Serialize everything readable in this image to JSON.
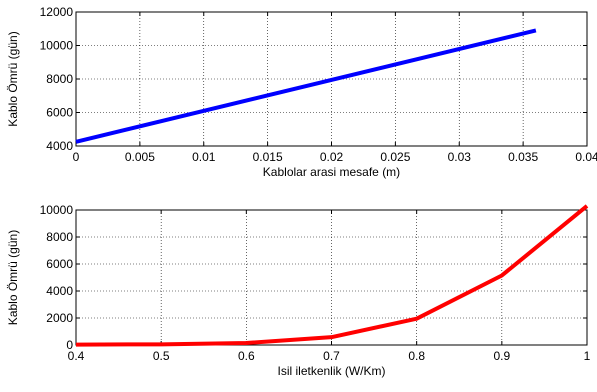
{
  "chart_data": [
    {
      "type": "line",
      "xlabel": "Kablolar arasi mesafe (m)",
      "ylabel": "Kablo Ömrü (gün)",
      "xlim": [
        0,
        0.04
      ],
      "ylim": [
        4000,
        12000
      ],
      "xticks": [
        0,
        0.005,
        0.01,
        0.015,
        0.02,
        0.025,
        0.03,
        0.035,
        0.04
      ],
      "xtick_labels": [
        "0",
        "0.005",
        "0.01",
        "0.015",
        "0.02",
        "0.025",
        "0.03",
        "0.035",
        "0.04"
      ],
      "yticks": [
        4000,
        6000,
        8000,
        10000,
        12000
      ],
      "ytick_labels": [
        "4000",
        "6000",
        "8000",
        "10000",
        "12000"
      ],
      "grid": true,
      "series": [
        {
          "color": "#0000ff",
          "x": [
            0,
            0.036
          ],
          "y": [
            4250,
            10900
          ]
        }
      ]
    },
    {
      "type": "line",
      "xlabel": "Isil iletkenlik (W/Km)",
      "ylabel": "Kablo Ömrü (gün)",
      "xlim": [
        0.4,
        1.0
      ],
      "ylim": [
        0,
        10000
      ],
      "xticks": [
        0.4,
        0.5,
        0.6,
        0.7,
        0.8,
        0.9,
        1.0
      ],
      "xtick_labels": [
        "0.4",
        "0.5",
        "0.6",
        "0.7",
        "0.8",
        "0.9",
        "1"
      ],
      "yticks": [
        0,
        2000,
        4000,
        6000,
        8000,
        10000
      ],
      "ytick_labels": [
        "0",
        "2000",
        "4000",
        "6000",
        "8000",
        "10000"
      ],
      "grid": true,
      "series": [
        {
          "color": "#ff0000",
          "x": [
            0.4,
            0.5,
            0.6,
            0.7,
            0.8,
            0.9,
            1.0
          ],
          "y": [
            30,
            50,
            150,
            580,
            1950,
            5150,
            10300
          ]
        }
      ]
    }
  ]
}
